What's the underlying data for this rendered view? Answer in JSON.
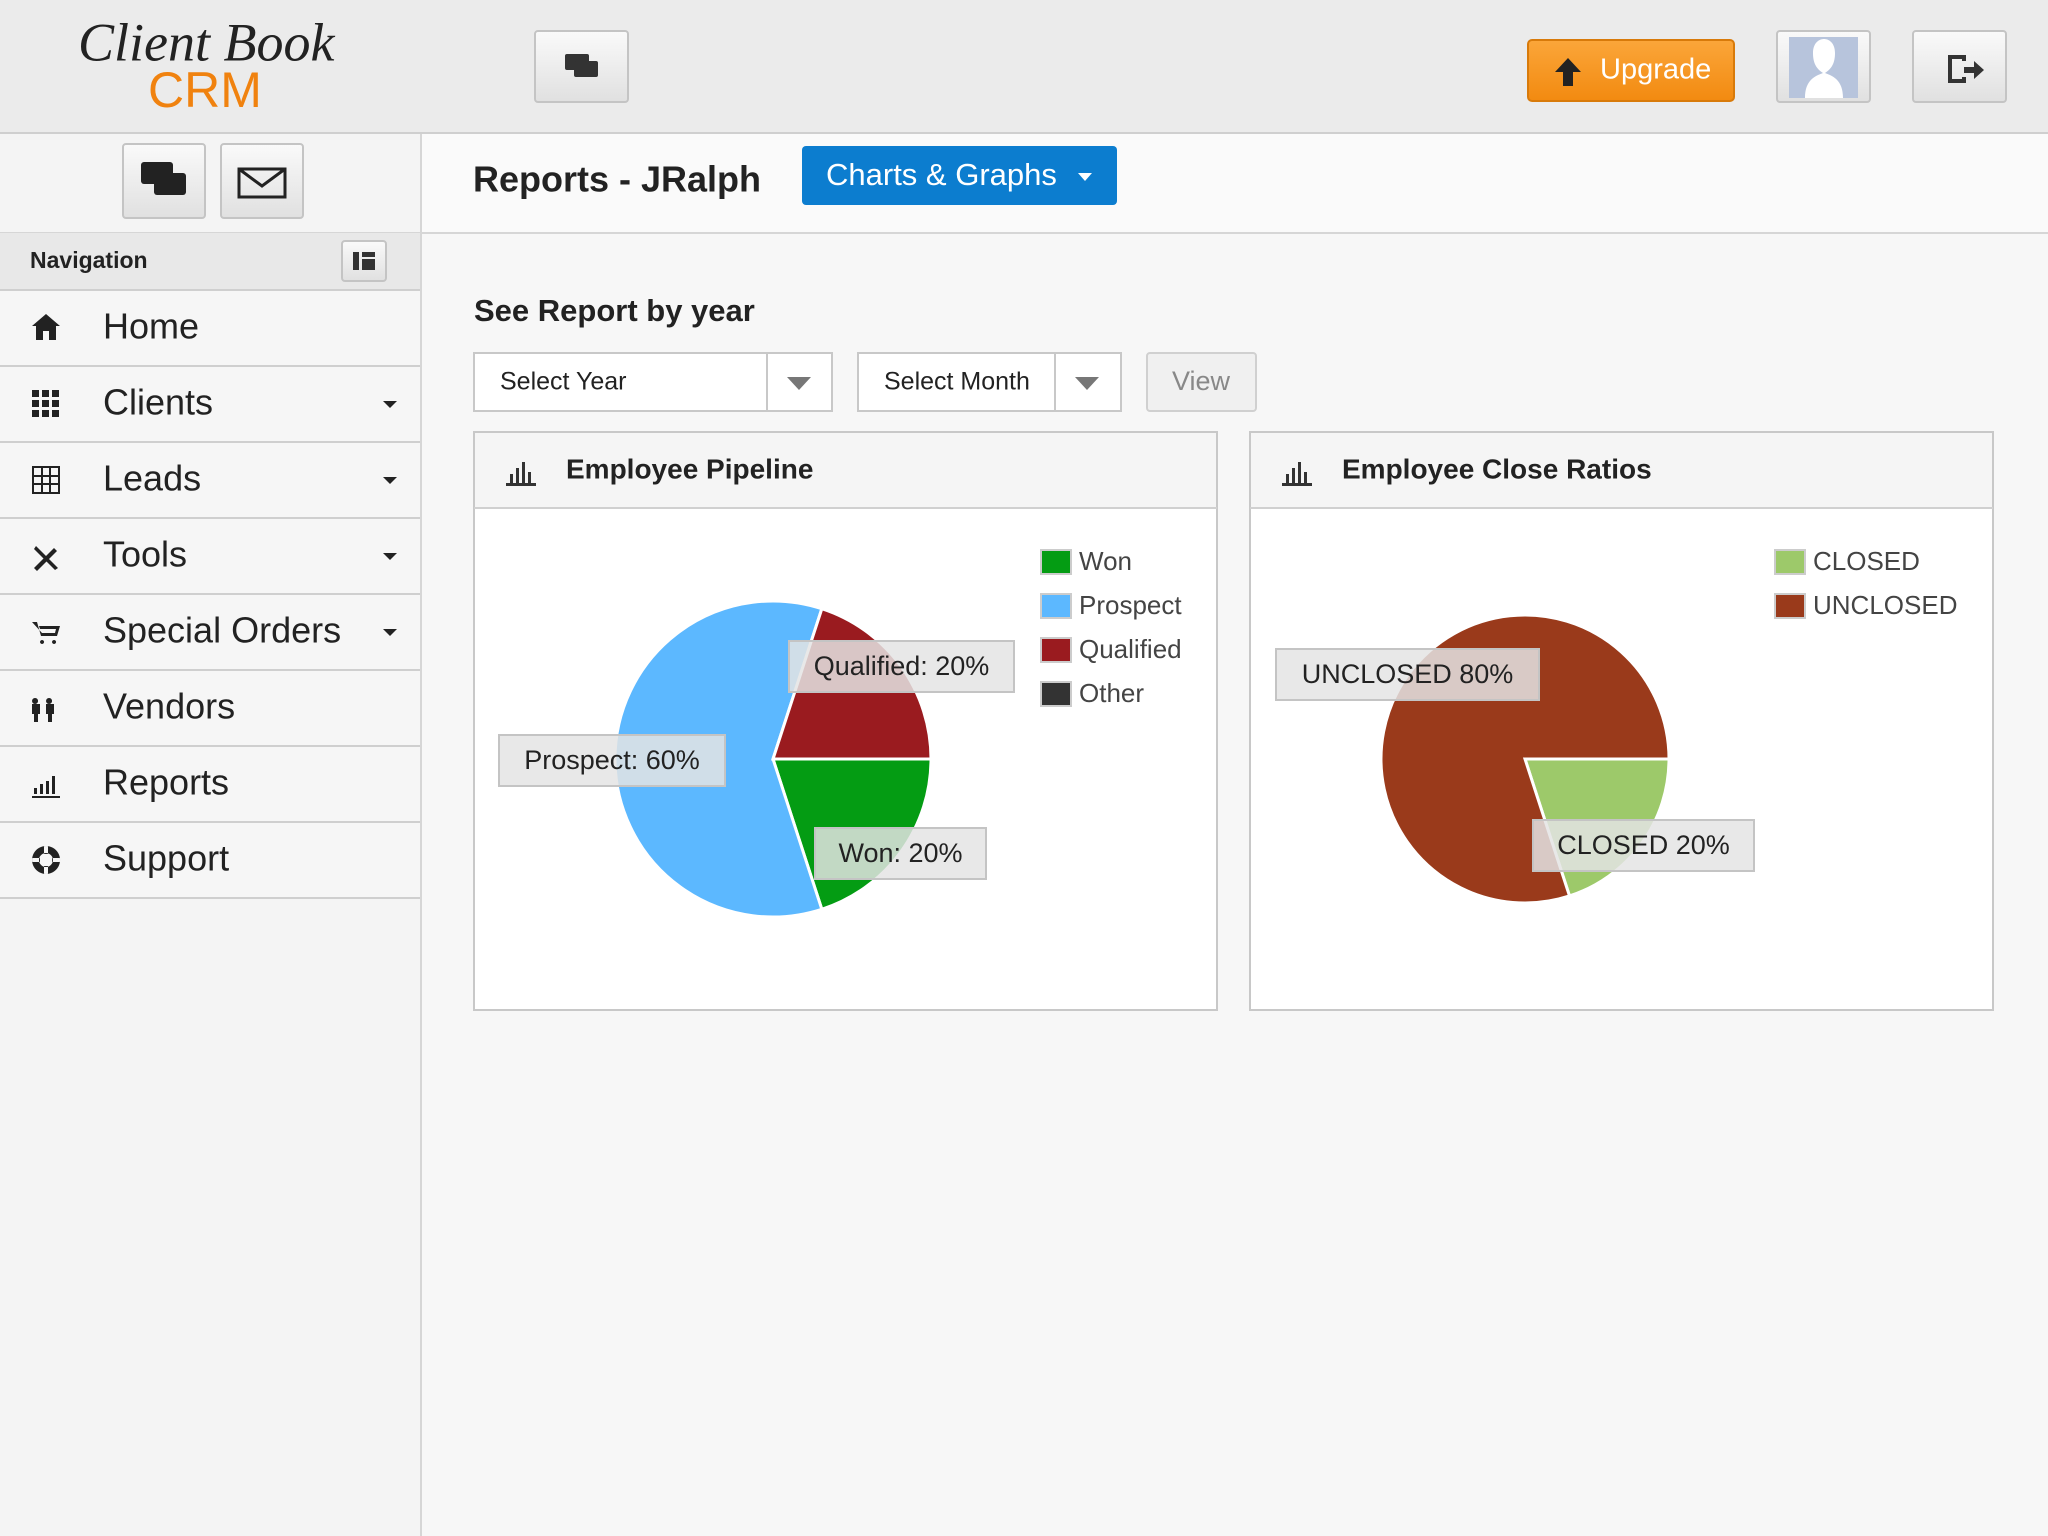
{
  "header": {
    "logo_line1": "Client Book",
    "logo_line2": "CRM",
    "upgrade": "Upgrade"
  },
  "sidebar": {
    "navigation": "Navigation",
    "items": [
      {
        "label": "Home",
        "has_menu": false
      },
      {
        "label": "Clients",
        "has_menu": true
      },
      {
        "label": "Leads",
        "has_menu": true
      },
      {
        "label": "Tools",
        "has_menu": true
      },
      {
        "label": "Special Orders",
        "has_menu": true
      },
      {
        "label": "Vendors",
        "has_menu": false
      },
      {
        "label": "Reports",
        "has_menu": false
      },
      {
        "label": "Support",
        "has_menu": false
      }
    ]
  },
  "page": {
    "title": "Reports - JRalph",
    "menu_button": "Charts & Graphs",
    "section_title": "See Report by year",
    "select_year": "Select Year",
    "select_month": "Select Month",
    "view_button": "View"
  },
  "chart_data": [
    {
      "type": "pie",
      "title": "Employee Pipeline",
      "categories": [
        "Won",
        "Prospect",
        "Qualified",
        "Other"
      ],
      "values": [
        20,
        60,
        20,
        0
      ],
      "value_labels": [
        "Won: 20%",
        "Prospect: 60%",
        "Qualified: 20%",
        null
      ],
      "colors": [
        "#049c13",
        "#5cb8ff",
        "#9a1b1f",
        "#333333"
      ]
    },
    {
      "type": "pie",
      "title": "Employee Close Ratios",
      "categories": [
        "CLOSED",
        "UNCLOSED"
      ],
      "values": [
        20,
        80
      ],
      "value_labels": [
        "CLOSED 20%",
        "UNCLOSED 80%"
      ],
      "colors": [
        "#9dc96a",
        "#9a3a1b"
      ]
    }
  ]
}
